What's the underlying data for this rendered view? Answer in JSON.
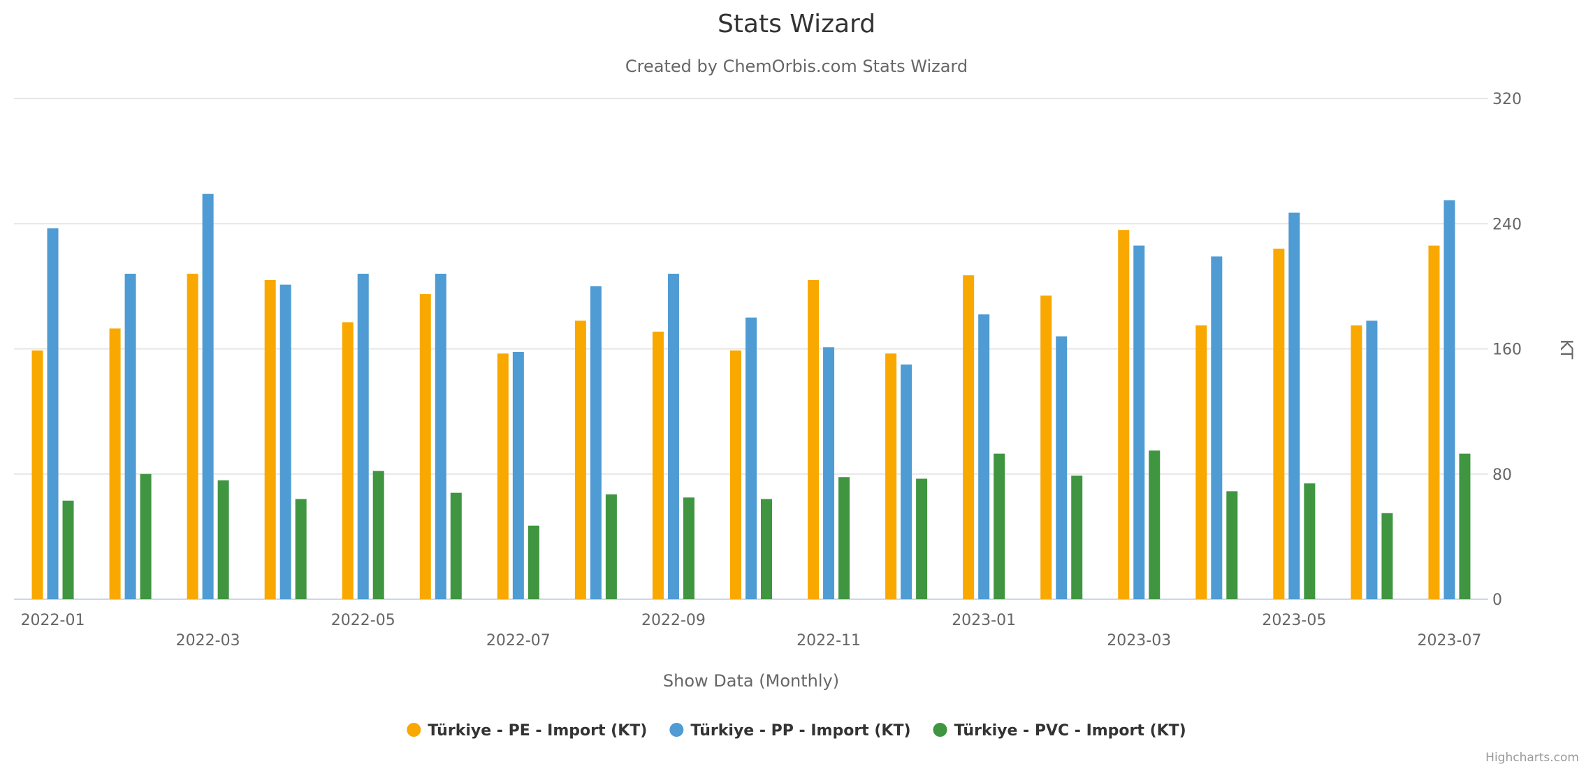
{
  "chart_data": {
    "type": "bar",
    "title": "Stats Wizard",
    "subtitle": "Created by ChemOrbis.com Stats Wizard",
    "xlabel": "Show Data (Monthly)",
    "ylabel": "KT",
    "ylim": [
      0,
      320
    ],
    "yticks": [
      0,
      80,
      160,
      240,
      320
    ],
    "grid": true,
    "legend_position": "bottom-center",
    "categories": [
      "2022-01",
      "2022-02",
      "2022-03",
      "2022-04",
      "2022-05",
      "2022-06",
      "2022-07",
      "2022-08",
      "2022-09",
      "2022-10",
      "2022-11",
      "2022-12",
      "2023-01",
      "2023-02",
      "2023-03",
      "2023-04",
      "2023-05",
      "2023-06",
      "2023-07"
    ],
    "tick_labels": [
      "2022-01",
      "2022-03",
      "2022-05",
      "2022-07",
      "2022-09",
      "2022-11",
      "2023-01",
      "2023-03",
      "2023-05",
      "2023-07"
    ],
    "series": [
      {
        "name": "Türkiye - PE - Import (KT)",
        "color": "#f9a800",
        "values": [
          159,
          173,
          208,
          204,
          177,
          195,
          157,
          178,
          171,
          159,
          204,
          157,
          207,
          194,
          236,
          175,
          224,
          175,
          226
        ]
      },
      {
        "name": "Türkiye - PP - Import (KT)",
        "color": "#4f9bd3",
        "values": [
          237,
          208,
          259,
          201,
          208,
          208,
          158,
          200,
          208,
          180,
          161,
          150,
          182,
          168,
          226,
          219,
          247,
          178,
          255
        ]
      },
      {
        "name": "Türkiye - PVC - Import (KT)",
        "color": "#3f9540",
        "values": [
          63,
          80,
          76,
          64,
          82,
          68,
          47,
          67,
          65,
          64,
          78,
          77,
          93,
          79,
          95,
          69,
          74,
          55,
          93
        ]
      }
    ]
  },
  "credits": "Highcharts.com"
}
